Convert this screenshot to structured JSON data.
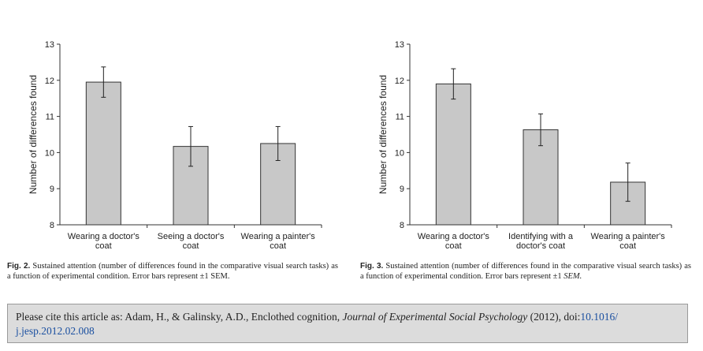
{
  "chart_data": [
    {
      "type": "bar",
      "title": "",
      "xlabel": "",
      "ylabel": "Number of differences found",
      "ylim": [
        8,
        13
      ],
      "yticks": [
        "8",
        "9",
        "10",
        "11",
        "12",
        "13"
      ],
      "categories": [
        [
          "Wearing a doctor's",
          "coat"
        ],
        [
          "Seeing a doctor's",
          "coat"
        ],
        [
          "Wearing a painter's",
          "coat"
        ]
      ],
      "values": [
        11.95,
        10.17,
        10.25
      ],
      "errors": [
        0.42,
        0.55,
        0.47
      ],
      "bar_color": "#c8c8c8"
    },
    {
      "type": "bar",
      "title": "",
      "xlabel": "",
      "ylabel": "Number of differences found",
      "ylim": [
        8,
        13
      ],
      "yticks": [
        "8",
        "9",
        "10",
        "11",
        "12",
        "13"
      ],
      "categories": [
        [
          "Wearing a doctor's",
          "coat"
        ],
        [
          "Identifying with a",
          "doctor's coat"
        ],
        [
          "Wearing a painter's",
          "coat"
        ]
      ],
      "values": [
        11.9,
        10.63,
        9.18
      ],
      "errors": [
        0.42,
        0.44,
        0.53
      ],
      "bar_color": "#c8c8c8"
    }
  ],
  "captions": [
    {
      "label": "Fig. 2.",
      "text": "Sustained attention (number of differences found in the comparative visual search tasks) as a function of experimental condition. Error bars represent ±1 SEM."
    },
    {
      "label": "Fig. 3.",
      "text_before": "Sustained attention (number of differences found in the comparative visual search tasks) as a function of experimental condition. Error bars represent ±1",
      "text_italic": "SEM."
    }
  ],
  "citation": {
    "prefix": "Please cite this article as: Adam, H., & Galinsky, A.D., Enclothed cognition,",
    "journal": "Journal of Experimental Social Psychology",
    "suffix": "(2012), doi:",
    "doi_part1": "10.1016/",
    "doi_part2": "j.jesp.2012.02.008"
  }
}
